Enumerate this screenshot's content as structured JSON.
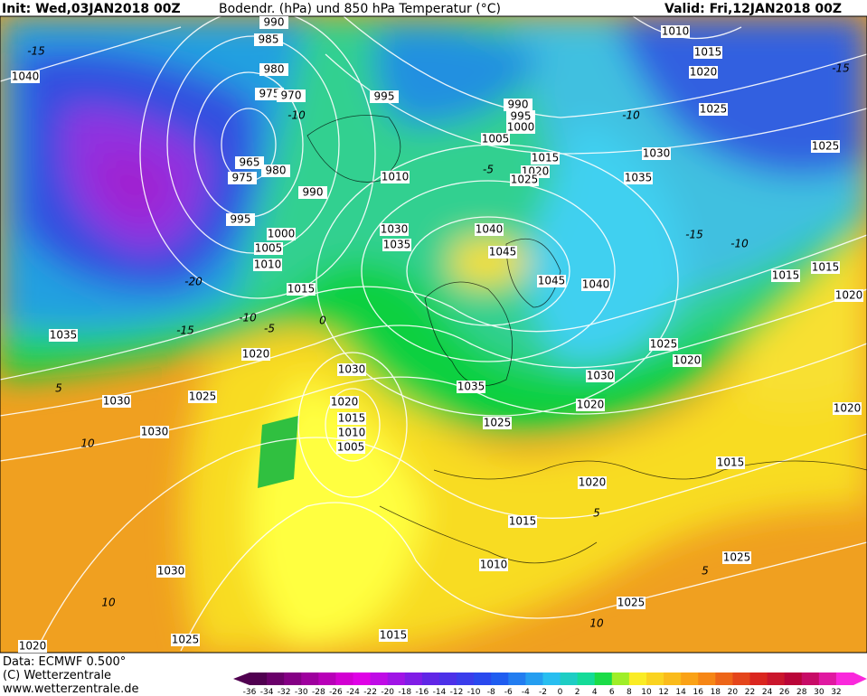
{
  "header": {
    "init": "Init: Wed,03JAN2018 00Z",
    "title": "Bodendr. (hPa) und 850 hPa Temperatur (°C)",
    "valid": "Valid: Fri,12JAN2018 00Z"
  },
  "footer": {
    "data": "Data: ECMWF  0.500°",
    "copyright": "(C) Wetterzentrale",
    "url": "www.wetterzentrale.de"
  },
  "colorbar": {
    "labels": [
      "-36",
      "-34",
      "-32",
      "-30",
      "-28",
      "-26",
      "-24",
      "-22",
      "-20",
      "-18",
      "-16",
      "-14",
      "-12",
      "-10",
      "-8",
      "-6",
      "-4",
      "-2",
      "0",
      "2",
      "4",
      "6",
      "8",
      "10",
      "12",
      "14",
      "16",
      "18",
      "20",
      "22",
      "24",
      "26",
      "28",
      "30",
      "32"
    ]
  },
  "isobar_labels": [
    "1040",
    "990",
    "985",
    "980",
    "975",
    "970",
    "965",
    "975",
    "980",
    "990",
    "995",
    "1000",
    "1005",
    "1010",
    "1015",
    "1035",
    "1020",
    "1025",
    "1030",
    "1030",
    "1030",
    "1020",
    "1015",
    "1010",
    "1005",
    "1030",
    "1020",
    "1025",
    "1015",
    "995",
    "990",
    "995",
    "1000",
    "1005",
    "1010",
    "1015",
    "1020",
    "1025",
    "1030",
    "1035",
    "1040",
    "1045",
    "1045",
    "1040",
    "1035",
    "1030",
    "1025",
    "1020",
    "1015",
    "1010",
    "1025",
    "1015",
    "1015",
    "1020",
    "1025",
    "1020",
    "1030",
    "1020",
    "1035",
    "1025",
    "1015",
    "1020",
    "1020",
    "1015",
    "1010",
    "1025",
    "1025"
  ],
  "temperature_labels": [
    "-15",
    "-20",
    "-15",
    "-10",
    "-5",
    "0",
    "5",
    "10",
    "10",
    "-10",
    "-5",
    "-10",
    "-15",
    "-10",
    "-15",
    "5",
    "10",
    "5"
  ]
}
